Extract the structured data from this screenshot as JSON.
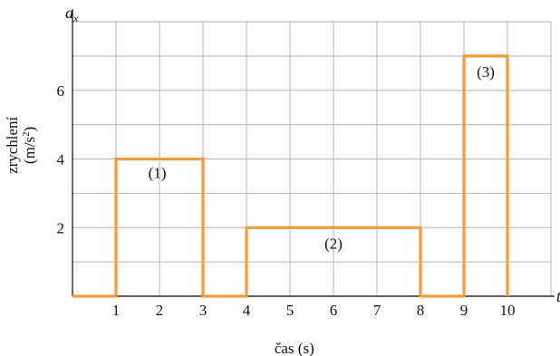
{
  "chart_data": {
    "type": "line",
    "step": true,
    "x_axis_variable": "t",
    "y_axis_variable": "a",
    "y_axis_variable_subscript": "x",
    "xlabel": "čas (s)",
    "ylabel_line1": "zrychlení",
    "ylabel_line2_main": "(m/s",
    "ylabel_line2_sup": "2",
    "ylabel_line2_end": ")",
    "xlim": [
      0,
      11
    ],
    "ylim": [
      0,
      8
    ],
    "grid": true,
    "line_color": "#f29b3a",
    "x_tick_values": [
      1,
      2,
      3,
      4,
      5,
      6,
      7,
      8,
      9,
      10
    ],
    "x_tick_labels": [
      "1",
      "2",
      "3",
      "4",
      "5",
      "6",
      "7",
      "8",
      "9",
      "10"
    ],
    "y_tick_values": [
      2,
      4,
      6
    ],
    "y_tick_labels": [
      "2",
      "4",
      "6"
    ],
    "series": [
      {
        "x": [
          0,
          1,
          1,
          3,
          3,
          4,
          4,
          8,
          8,
          9,
          9,
          10,
          10
        ],
        "y": [
          0,
          0,
          4,
          4,
          0,
          0,
          2,
          2,
          0,
          0,
          7,
          7,
          0
        ]
      }
    ],
    "annotations": [
      {
        "text": "(1)",
        "x": 1.95,
        "y": 3.6
      },
      {
        "text": "(2)",
        "x": 6.0,
        "y": 1.55
      },
      {
        "text": "(3)",
        "x": 9.5,
        "y": 6.55
      }
    ]
  }
}
